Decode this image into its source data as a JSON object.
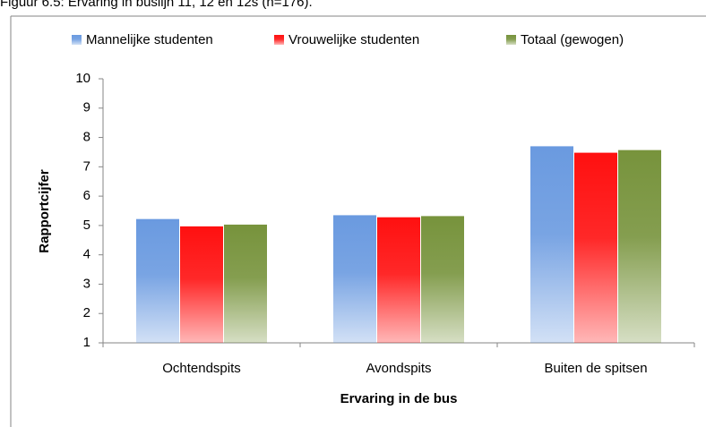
{
  "caption": "Figuur 6.5: Ervaring in buslijn 11, 12 en 12s (n=176).",
  "chart_data": {
    "type": "bar",
    "xlabel": "Ervaring in de bus",
    "ylabel": "Rapportcijfer",
    "categories": [
      "Ochtendspits",
      "Avondspits",
      "Buiten de spitsen"
    ],
    "series": [
      {
        "name": "Mannelijke studenten",
        "color": "#6a9ae0",
        "values": [
          5.22,
          5.35,
          7.7
        ]
      },
      {
        "name": "Vrouwelijke studenten",
        "color": "#ff1010",
        "values": [
          4.97,
          5.28,
          7.48
        ]
      },
      {
        "name": "Totaal (gewogen)",
        "color": "#77933c",
        "values": [
          5.03,
          5.32,
          7.57
        ]
      }
    ],
    "ylim": [
      1,
      10
    ],
    "yticks": [
      1,
      2,
      3,
      4,
      5,
      6,
      7,
      8,
      9,
      10
    ],
    "grid": false,
    "legend": "top"
  }
}
